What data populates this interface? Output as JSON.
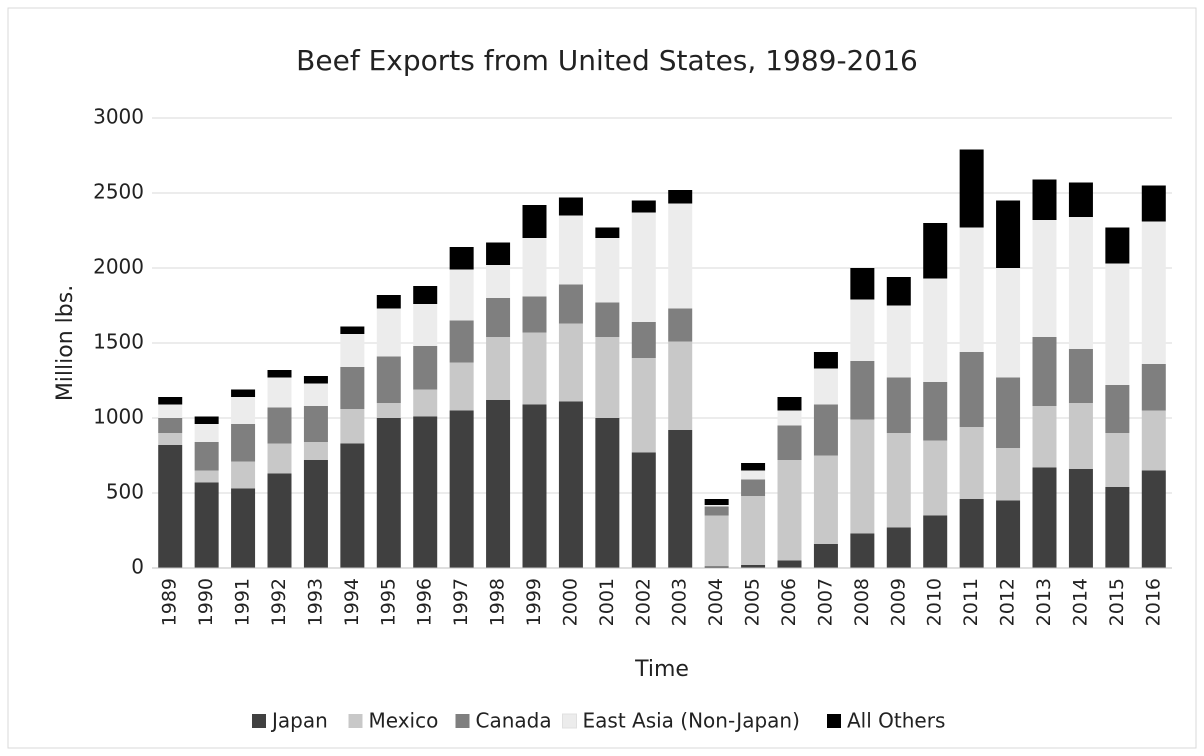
{
  "chart_data": {
    "type": "stacked_bar",
    "title": "Beef Exports from United States, 1989-2016",
    "x_label": "Time",
    "y_label": "Million lbs.",
    "categories": [
      "1989",
      "1990",
      "1991",
      "1992",
      "1993",
      "1994",
      "1995",
      "1996",
      "1997",
      "1998",
      "1999",
      "2000",
      "2001",
      "2002",
      "2003",
      "2004",
      "2005",
      "2006",
      "2007",
      "2008",
      "2009",
      "2010",
      "2011",
      "2012",
      "2013",
      "2014",
      "2015",
      "2016"
    ],
    "series": [
      {
        "name": "Japan",
        "color": "#404040",
        "values": [
          820,
          570,
          530,
          630,
          720,
          830,
          1000,
          1010,
          1050,
          1120,
          1090,
          1110,
          1000,
          770,
          920,
          10,
          20,
          50,
          160,
          230,
          270,
          350,
          460,
          450,
          670,
          660,
          540,
          650
        ]
      },
      {
        "name": "Mexico",
        "color": "#c8c8c8",
        "values": [
          80,
          80,
          180,
          200,
          120,
          230,
          100,
          180,
          320,
          420,
          480,
          520,
          540,
          630,
          590,
          340,
          460,
          670,
          590,
          760,
          630,
          500,
          480,
          350,
          410,
          440,
          360,
          400
        ]
      },
      {
        "name": "Canada",
        "color": "#7f7f7f",
        "values": [
          100,
          190,
          250,
          240,
          240,
          280,
          310,
          290,
          280,
          260,
          240,
          260,
          230,
          240,
          220,
          60,
          110,
          230,
          340,
          390,
          370,
          390,
          500,
          470,
          460,
          360,
          320,
          310
        ]
      },
      {
        "name": "East Asia (Non-Japan)",
        "color": "#ececec",
        "values": [
          90,
          120,
          180,
          200,
          150,
          220,
          320,
          280,
          340,
          220,
          390,
          460,
          430,
          730,
          700,
          10,
          60,
          100,
          240,
          410,
          480,
          690,
          830,
          730,
          780,
          880,
          810,
          950
        ]
      },
      {
        "name": "All Others",
        "color": "#000000",
        "values": [
          50,
          50,
          50,
          50,
          50,
          50,
          90,
          120,
          150,
          150,
          220,
          120,
          70,
          80,
          90,
          40,
          50,
          90,
          110,
          210,
          190,
          370,
          520,
          450,
          270,
          230,
          240,
          240
        ]
      }
    ],
    "ylim": [
      0,
      3000
    ],
    "yticks": [
      0,
      500,
      1000,
      1500,
      2000,
      2500,
      3000
    ],
    "grid": true,
    "legend": "bottom"
  }
}
